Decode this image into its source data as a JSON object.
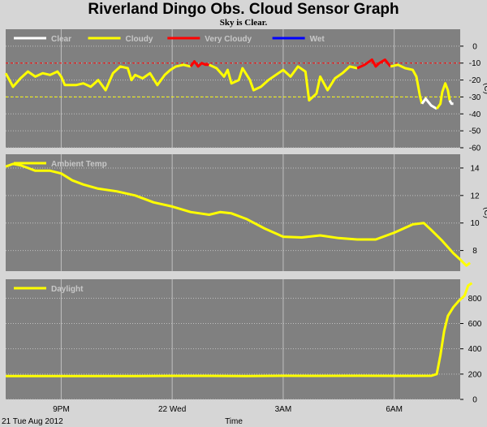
{
  "title": "Riverland Dingo Obs. Cloud Sensor Graph",
  "subtitle": "Sky is Clear.",
  "date_label": "21 Tue Aug 2012",
  "x_axis_label": "Time",
  "colors": {
    "panel_bg": "#808080",
    "grid": "#c0c0c0",
    "clear": "#ffffff",
    "cloudy": "#ffff00",
    "very_cloudy": "#ff0000",
    "wet": "#0000ff"
  },
  "chart_data": [
    {
      "type": "line",
      "name": "sky-temp",
      "legend": [
        {
          "label": "Clear",
          "color": "#ffffff"
        },
        {
          "label": "Cloudy",
          "color": "#ffff00"
        },
        {
          "label": "Very Cloudy",
          "color": "#ff0000"
        },
        {
          "label": "Wet",
          "color": "#0000ff"
        }
      ],
      "ylabel": "(C)",
      "ylim": [
        -60,
        10
      ],
      "yticks": [
        0,
        -10,
        -20,
        -30,
        -40,
        -50,
        -60
      ],
      "threshold_lines": [
        {
          "value": -10,
          "color": "#ff0000"
        },
        {
          "value": -30,
          "color": "#ffff00"
        }
      ],
      "xticks": [
        {
          "hour": 21,
          "label": "9PM"
        },
        {
          "hour": 24,
          "label": "22 Wed"
        },
        {
          "hour": 27,
          "label": "3AM"
        },
        {
          "hour": 30,
          "label": "6AM"
        }
      ],
      "xlim": [
        19.5,
        31.6
      ],
      "segments": [
        {
          "state": "cloudy",
          "points": [
            [
              19.5,
              -16
            ],
            [
              19.7,
              -24
            ],
            [
              19.9,
              -19
            ],
            [
              20.1,
              -15
            ],
            [
              20.3,
              -18
            ],
            [
              20.5,
              -16
            ],
            [
              20.7,
              -17
            ],
            [
              20.9,
              -15
            ],
            [
              21.0,
              -18
            ],
            [
              21.1,
              -23
            ],
            [
              21.4,
              -23
            ],
            [
              21.6,
              -22
            ],
            [
              21.8,
              -24
            ],
            [
              22.0,
              -20
            ],
            [
              22.2,
              -26
            ],
            [
              22.4,
              -16
            ],
            [
              22.6,
              -12
            ],
            [
              22.8,
              -13
            ],
            [
              22.9,
              -20
            ],
            [
              23.0,
              -17
            ],
            [
              23.2,
              -19
            ],
            [
              23.4,
              -16
            ],
            [
              23.6,
              -23
            ],
            [
              23.8,
              -17
            ],
            [
              23.95,
              -14
            ],
            [
              24.1,
              -12
            ],
            [
              24.3,
              -11
            ],
            [
              24.5,
              -12
            ]
          ]
        },
        {
          "state": "very_cloudy",
          "points": [
            [
              24.5,
              -12
            ],
            [
              24.6,
              -9
            ],
            [
              24.7,
              -12
            ],
            [
              24.8,
              -10
            ],
            [
              24.9,
              -11
            ],
            [
              25.0,
              -11
            ]
          ]
        },
        {
          "state": "cloudy",
          "points": [
            [
              25.0,
              -11
            ],
            [
              25.2,
              -13
            ],
            [
              25.4,
              -18
            ],
            [
              25.5,
              -14
            ],
            [
              25.6,
              -22
            ],
            [
              25.8,
              -20
            ],
            [
              25.9,
              -13
            ],
            [
              26.1,
              -20
            ],
            [
              26.2,
              -26
            ],
            [
              26.4,
              -24
            ],
            [
              26.6,
              -20
            ],
            [
              26.8,
              -17
            ],
            [
              27.0,
              -14
            ],
            [
              27.2,
              -18
            ],
            [
              27.4,
              -12
            ],
            [
              27.6,
              -15
            ],
            [
              27.7,
              -32
            ],
            [
              27.9,
              -28
            ],
            [
              28.0,
              -18
            ],
            [
              28.2,
              -26
            ],
            [
              28.4,
              -19
            ],
            [
              28.6,
              -16
            ],
            [
              28.8,
              -12
            ],
            [
              29.0,
              -13
            ]
          ]
        },
        {
          "state": "very_cloudy",
          "points": [
            [
              29.0,
              -13
            ],
            [
              29.2,
              -11
            ],
            [
              29.4,
              -8
            ],
            [
              29.5,
              -12
            ],
            [
              29.6,
              -10
            ],
            [
              29.75,
              -8
            ],
            [
              29.9,
              -12
            ]
          ]
        },
        {
          "state": "cloudy",
          "points": [
            [
              29.9,
              -12
            ],
            [
              30.1,
              -11
            ],
            [
              30.3,
              -13
            ],
            [
              30.5,
              -14
            ],
            [
              30.6,
              -18
            ],
            [
              30.7,
              -30
            ],
            [
              30.75,
              -34
            ]
          ]
        },
        {
          "state": "clear",
          "points": [
            [
              30.75,
              -34
            ],
            [
              30.85,
              -31
            ],
            [
              31.0,
              -35
            ],
            [
              31.15,
              -37
            ]
          ]
        },
        {
          "state": "cloudy",
          "points": [
            [
              31.15,
              -37
            ],
            [
              31.25,
              -34
            ],
            [
              31.3,
              -27
            ],
            [
              31.38,
              -22
            ],
            [
              31.45,
              -26
            ],
            [
              31.5,
              -32
            ]
          ]
        },
        {
          "state": "clear",
          "points": [
            [
              31.5,
              -32
            ],
            [
              31.55,
              -34
            ],
            [
              31.6,
              -34
            ]
          ]
        }
      ]
    },
    {
      "type": "line",
      "name": "ambient-temp",
      "legend": [
        {
          "label": "Ambient Temp",
          "color": "#ffff00"
        }
      ],
      "ylabel": "(C)",
      "ylim": [
        6.5,
        15
      ],
      "yticks": [
        8,
        10,
        12,
        14
      ],
      "xlim": [
        19.5,
        31.6
      ],
      "series": [
        {
          "name": "Ambient Temp",
          "points": [
            [
              19.5,
              14.1
            ],
            [
              19.7,
              14.3
            ],
            [
              19.9,
              14.2
            ],
            [
              20.1,
              14.0
            ],
            [
              20.3,
              13.8
            ],
            [
              20.5,
              13.8
            ],
            [
              20.7,
              13.8
            ],
            [
              21.0,
              13.6
            ],
            [
              21.3,
              13.1
            ],
            [
              21.6,
              12.8
            ],
            [
              22.0,
              12.5
            ],
            [
              22.5,
              12.3
            ],
            [
              23.0,
              12.0
            ],
            [
              23.5,
              11.5
            ],
            [
              24.0,
              11.2
            ],
            [
              24.5,
              10.8
            ],
            [
              25.0,
              10.6
            ],
            [
              25.3,
              10.8
            ],
            [
              25.6,
              10.7
            ],
            [
              26.0,
              10.3
            ],
            [
              26.5,
              9.6
            ],
            [
              27.0,
              9.0
            ],
            [
              27.5,
              8.95
            ],
            [
              28.0,
              9.1
            ],
            [
              28.5,
              8.9
            ],
            [
              29.0,
              8.8
            ],
            [
              29.5,
              8.8
            ],
            [
              30.0,
              9.3
            ],
            [
              30.5,
              9.9
            ],
            [
              30.8,
              10.0
            ],
            [
              31.0,
              9.5
            ],
            [
              31.3,
              8.7
            ],
            [
              31.5,
              8.1
            ],
            [
              31.6,
              7.8
            ],
            [
              31.8,
              7.3
            ],
            [
              31.95,
              6.9
            ],
            [
              32.05,
              7.1
            ]
          ]
        }
      ]
    },
    {
      "type": "line",
      "name": "daylight",
      "legend": [
        {
          "label": "Daylight",
          "color": "#ffff00"
        }
      ],
      "ylim": [
        0,
        950
      ],
      "yticks": [
        0,
        200,
        400,
        600,
        800
      ],
      "xlim": [
        19.5,
        31.6
      ],
      "series": [
        {
          "name": "Daylight",
          "points": [
            [
              19.5,
              185
            ],
            [
              21.0,
              185
            ],
            [
              22.0,
              185
            ],
            [
              23.0,
              185
            ],
            [
              24.0,
              186
            ],
            [
              25.0,
              186
            ],
            [
              26.0,
              185
            ],
            [
              27.0,
              187
            ],
            [
              28.0,
              186
            ],
            [
              29.0,
              187
            ],
            [
              30.0,
              186
            ],
            [
              31.0,
              187
            ],
            [
              31.15,
              200
            ],
            [
              31.25,
              350
            ],
            [
              31.35,
              540
            ],
            [
              31.45,
              660
            ],
            [
              31.6,
              730
            ],
            [
              31.75,
              780
            ],
            [
              31.9,
              820
            ],
            [
              32.0,
              900
            ],
            [
              32.1,
              920
            ]
          ]
        }
      ]
    }
  ]
}
